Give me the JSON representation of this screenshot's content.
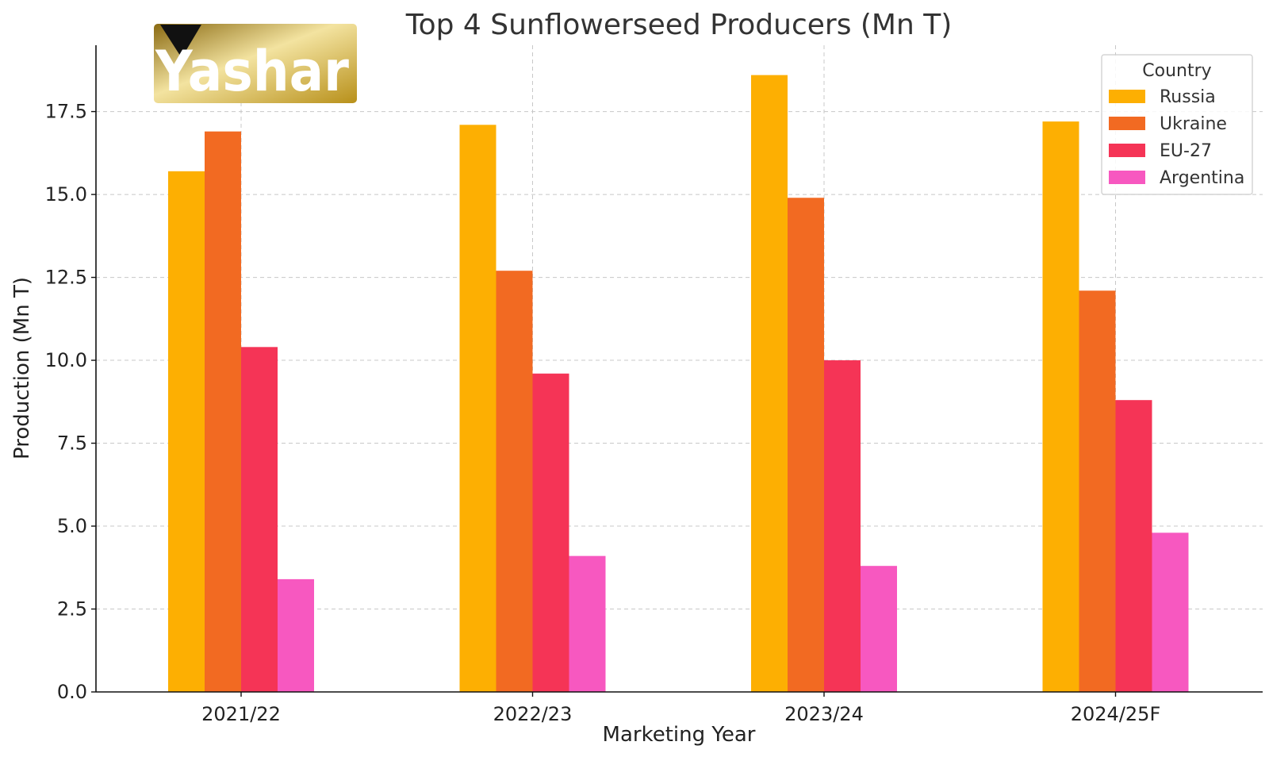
{
  "chart_data": {
    "type": "bar",
    "title": "Top 4 Sunflowerseed Producers (Mn T)",
    "xlabel": "Marketing Year",
    "ylabel": "Production (Mn T)",
    "categories": [
      "2021/22",
      "2022/23",
      "2023/24",
      "2024/25F"
    ],
    "ylim": [
      0,
      19.5
    ],
    "yticks": [
      0.0,
      2.5,
      5.0,
      7.5,
      10.0,
      12.5,
      15.0,
      17.5
    ],
    "ytick_labels": [
      "0.0",
      "2.5",
      "5.0",
      "7.5",
      "10.0",
      "12.5",
      "15.0",
      "17.5"
    ],
    "grid": true,
    "legend": {
      "title": "Country",
      "placement": "top-right"
    },
    "series": [
      {
        "name": "Russia",
        "color": "#FDAF02",
        "values": [
          15.7,
          17.1,
          18.6,
          17.2
        ]
      },
      {
        "name": "Ukraine",
        "color": "#F26A22",
        "values": [
          16.9,
          12.7,
          14.9,
          12.1
        ]
      },
      {
        "name": "EU-27",
        "color": "#F53456",
        "values": [
          10.4,
          9.6,
          10.0,
          8.8
        ]
      },
      {
        "name": "Argentina",
        "color": "#F758C0",
        "values": [
          3.4,
          4.1,
          3.8,
          4.8
        ]
      }
    ]
  },
  "logo": {
    "text": "Yashar",
    "gold": "#C9A227",
    "gold_light": "#F3E3A0",
    "mark_color": "#111111"
  }
}
